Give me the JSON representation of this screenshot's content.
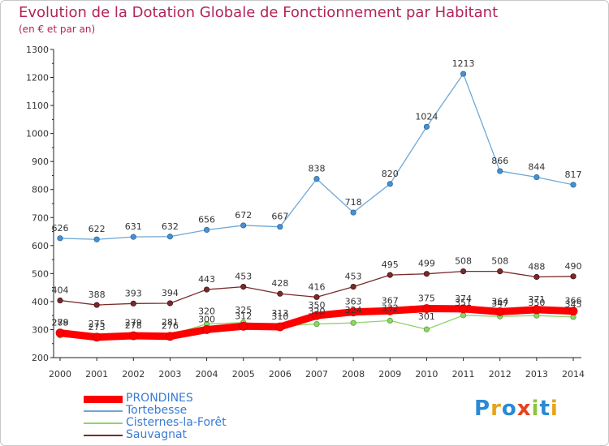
{
  "chart_data": {
    "type": "line",
    "title": "Evolution de la Dotation Globale de Fonctionnement par Habitant",
    "subtitle": "(en € et par an)",
    "x": [
      "2000",
      "2001",
      "2002",
      "2003",
      "2004",
      "2005",
      "2006",
      "2007",
      "2008",
      "2009",
      "2010",
      "2011",
      "2012",
      "2013",
      "2014"
    ],
    "ylim": [
      200,
      1300
    ],
    "yticks": [
      200,
      300,
      400,
      500,
      600,
      700,
      800,
      900,
      1000,
      1100,
      1200,
      1300
    ],
    "grid": false,
    "legend_position": "bottom-left",
    "series": [
      {
        "name": "PRONDINES",
        "color": "#ff0000",
        "values": [
          288,
          273,
          278,
          276,
          300,
          312,
          310,
          350,
          363,
          367,
          375,
          374,
          364,
          371,
          366
        ]
      },
      {
        "name": "Tortebesse",
        "color": "#6fa8d6",
        "values": [
          626,
          622,
          631,
          632,
          656,
          672,
          667,
          838,
          718,
          820,
          1024,
          1213,
          866,
          844,
          817
        ]
      },
      {
        "name": "Cisternes-la-Forêt",
        "color": "#8fd46a",
        "values": [
          279,
          275,
          279,
          281,
          320,
          325,
          313,
          320,
          324,
          332,
          301,
          351,
          347,
          350,
          345
        ]
      },
      {
        "name": "Sauvagnat",
        "color": "#7a2a2a",
        "values": [
          404,
          388,
          393,
          394,
          443,
          453,
          428,
          416,
          453,
          495,
          499,
          508,
          508,
          488,
          490
        ]
      }
    ]
  },
  "logo": {
    "text": "Proxiti",
    "colors": [
      "#2a8ad4",
      "#e8a21c",
      "#2a8ad4",
      "#e8421c",
      "#8cc63f",
      "#2a8ad4",
      "#e8a21c"
    ]
  }
}
